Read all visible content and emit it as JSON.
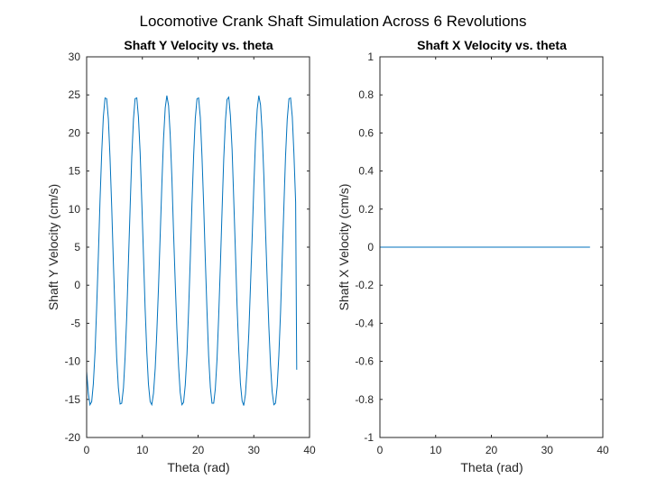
{
  "figure": {
    "suptitle": "Locomotive Crank Shaft Simulation Across 6 Revolutions"
  },
  "chart_data": [
    {
      "type": "line",
      "title": "Shaft Y Velocity vs. theta",
      "xlabel": "Theta (rad)",
      "ylabel": "Shaft Y Velocity (cm/s)",
      "xlim": [
        0,
        40
      ],
      "ylim": [
        -20,
        30
      ],
      "xticks": [
        "0",
        "10",
        "20",
        "30",
        "40"
      ],
      "yticks": [
        "-20",
        "-15",
        "-10",
        "-5",
        "0",
        "5",
        "10",
        "15",
        "20",
        "25",
        "30"
      ],
      "grid": false,
      "line_color": "#0072bd",
      "series": [
        {
          "x": [
            0,
            0.3,
            0.6,
            0.9,
            1.2,
            1.5,
            1.8,
            2.1,
            2.4,
            2.7,
            3.0,
            3.3,
            3.6,
            3.9,
            4.2,
            4.5,
            4.8,
            5.1,
            5.4,
            5.7,
            6.0,
            6.3,
            6.6,
            6.9,
            7.2,
            7.5,
            7.8,
            8.1,
            8.4,
            8.7,
            9.0,
            9.3,
            9.6,
            9.9,
            10.2,
            10.5,
            10.8,
            11.1,
            11.4,
            11.7,
            12.0,
            12.3,
            12.6,
            12.9,
            13.2,
            13.5,
            13.8,
            14.1,
            14.4,
            14.7,
            15.0,
            15.3,
            15.6,
            15.9,
            16.2,
            16.5,
            16.8,
            17.1,
            17.4,
            17.7,
            18.0,
            18.3,
            18.6,
            18.9,
            19.2,
            19.5,
            19.8,
            20.1,
            20.4,
            20.7,
            21.0,
            21.3,
            21.6,
            21.9,
            22.2,
            22.5,
            22.8,
            23.1,
            23.4,
            23.7,
            24.0,
            24.3,
            24.6,
            24.9,
            25.2,
            25.5,
            25.8,
            26.1,
            26.4,
            26.7,
            27.0,
            27.3,
            27.6,
            27.9,
            28.2,
            28.5,
            28.8,
            29.1,
            29.4,
            29.7,
            30.0,
            30.3,
            30.6,
            30.9,
            31.2,
            31.5,
            31.8,
            32.1,
            32.4,
            32.7,
            33.0,
            33.3,
            33.6,
            33.9,
            34.2,
            34.5,
            34.8,
            35.1,
            35.4,
            35.7,
            36.0,
            36.3,
            36.6,
            36.9,
            37.2,
            37.5,
            37.7
          ],
          "y": [
            -11.3,
            -14.2,
            -15.7,
            -15.3,
            -13.0,
            -8.8,
            -3.0,
            3.9,
            11.0,
            17.4,
            22.1,
            24.6,
            24.5,
            21.8,
            16.8,
            10.2,
            3.1,
            -3.8,
            -9.5,
            -13.5,
            -15.6,
            -15.5,
            -13.5,
            -9.5,
            -3.9,
            3.0,
            10.2,
            16.8,
            21.8,
            24.5,
            24.6,
            22.1,
            17.4,
            11.0,
            3.9,
            -3.0,
            -8.8,
            -13.0,
            -15.3,
            -15.7,
            -14.2,
            -10.9,
            -6.1,
            -0.1,
            6.5,
            13.4,
            19.2,
            23.3,
            24.9,
            23.6,
            19.8,
            14.0,
            7.0,
            0.3,
            -5.7,
            -10.7,
            -14.1,
            -15.7,
            -15.4,
            -13.1,
            -9.0,
            -3.3,
            3.6,
            10.7,
            17.1,
            21.9,
            24.5,
            24.6,
            22.0,
            17.0,
            10.5,
            3.4,
            -3.5,
            -9.3,
            -13.4,
            -15.5,
            -15.5,
            -13.6,
            -9.7,
            -4.2,
            2.6,
            9.9,
            16.5,
            21.6,
            24.4,
            24.7,
            22.3,
            17.8,
            11.3,
            4.3,
            -2.7,
            -8.6,
            -12.9,
            -15.2,
            -15.8,
            -14.3,
            -11.0,
            -6.3,
            -0.3,
            6.2,
            13.1,
            18.9,
            23.1,
            24.9,
            23.7,
            20.1,
            14.3,
            7.3,
            0.6,
            -5.4,
            -10.5,
            -14.0,
            -15.7,
            -15.5,
            -13.2,
            -9.2,
            -3.5,
            3.4,
            10.4,
            16.9,
            21.8,
            24.5,
            24.6,
            22.1,
            17.3,
            10.9,
            -11.1
          ]
        }
      ]
    },
    {
      "type": "line",
      "title": "Shaft X Velocity vs. theta",
      "xlabel": "Theta (rad)",
      "ylabel": "Shaft X Velocity (cm/s)",
      "xlim": [
        0,
        40
      ],
      "ylim": [
        -1,
        1
      ],
      "xticks": [
        "0",
        "10",
        "20",
        "30",
        "40"
      ],
      "yticks": [
        "-1",
        "-0.8",
        "-0.6",
        "-0.4",
        "-0.2",
        "0",
        "0.2",
        "0.4",
        "0.6",
        "0.8",
        "1"
      ],
      "grid": false,
      "line_color": "#0072bd",
      "series": [
        {
          "x": [
            0,
            37.7
          ],
          "y": [
            0,
            0
          ]
        }
      ]
    }
  ]
}
